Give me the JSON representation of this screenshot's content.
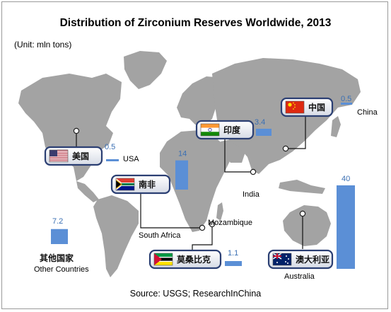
{
  "title": "Distribution of Zirconium Reserves Worldwide, 2013",
  "unit": "(Unit: mln tons)",
  "source": "Source: USGS; ResearchInChina",
  "colors": {
    "bar": "#5b8fd6",
    "map": "#a3a3a3",
    "badge_border": "#2b3f73"
  },
  "chart_data": {
    "type": "bar",
    "title": "Distribution of Zirconium Reserves Worldwide, 2013",
    "unit": "(Unit: mln tons)",
    "categories": [
      "China",
      "India",
      "USA",
      "South Africa",
      "Mozambique",
      "Australia",
      "Other Countries"
    ],
    "values": [
      0.5,
      3.4,
      0.5,
      14,
      1.1,
      40,
      7.2
    ],
    "value_labels": [
      "0.5",
      "3.4",
      "0.5",
      "14",
      "1.1",
      "40",
      "7.2"
    ],
    "badges": [
      {
        "country": "China",
        "cn": "中国",
        "flag": "china"
      },
      {
        "country": "India",
        "cn": "印度",
        "flag": "india"
      },
      {
        "country": "USA",
        "cn": "美国",
        "flag": "usa"
      },
      {
        "country": "South Africa",
        "cn": "南非",
        "flag": "south-africa"
      },
      {
        "country": "Mozambique",
        "cn": "莫桑比克",
        "flag": "mozambique"
      },
      {
        "country": "Australia",
        "cn": "澳大利亚",
        "flag": "australia"
      }
    ],
    "other_cn": "其他国家"
  }
}
